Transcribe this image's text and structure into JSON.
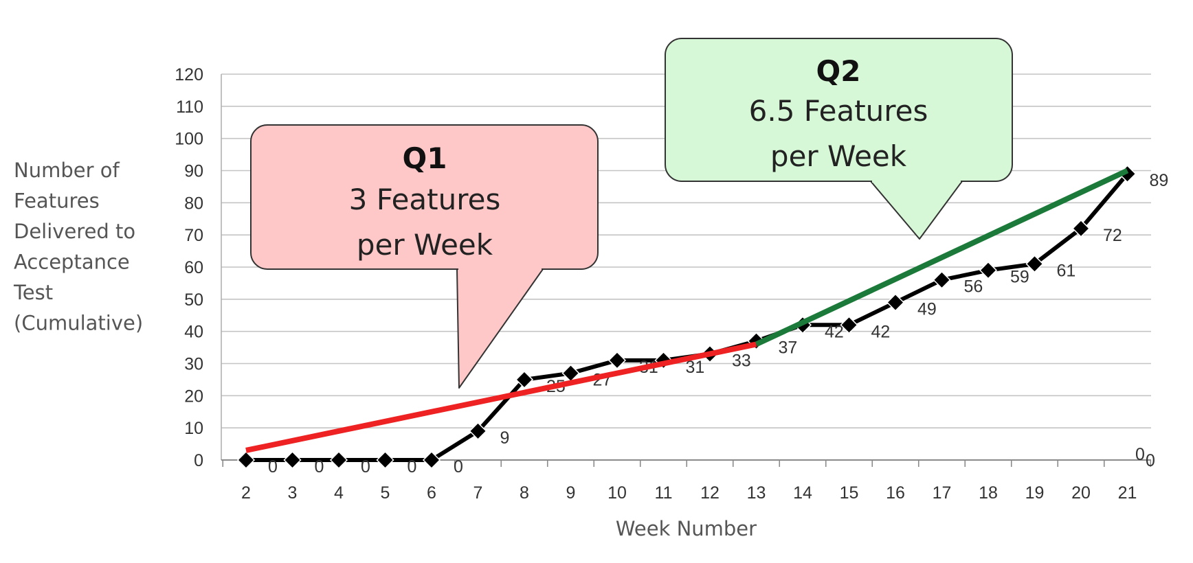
{
  "chart_data": {
    "type": "line",
    "title": "",
    "xlabel": "Week Number",
    "ylabel_lines": [
      "Number of",
      "Features",
      "Delivered to",
      "Acceptance",
      "Test",
      "(Cumulative)"
    ],
    "categories": [
      "2",
      "3",
      "4",
      "5",
      "6",
      "7",
      "8",
      "9",
      "10",
      "11",
      "12",
      "13",
      "14",
      "15",
      "16",
      "17",
      "18",
      "19",
      "20",
      "21"
    ],
    "ylim": [
      0,
      120
    ],
    "yticks": [
      0,
      10,
      20,
      30,
      40,
      50,
      60,
      70,
      80,
      90,
      100,
      110,
      120
    ],
    "grid": true,
    "series": [
      {
        "values": [
          0,
          0,
          0,
          0,
          0,
          9,
          25,
          27,
          31,
          31,
          33,
          37,
          42,
          42,
          49,
          56,
          59,
          61,
          72,
          89
        ],
        "labels": [
          "0",
          "0",
          "0",
          "0",
          "0",
          "9",
          "25",
          "27",
          "31",
          "31",
          "33",
          "37",
          "42",
          "42",
          "49",
          "56",
          "59",
          "61",
          "72",
          "89"
        ],
        "color": "#000000",
        "marker": "diamond"
      }
    ],
    "trend_lines": [
      {
        "x": [
          "2",
          "13"
        ],
        "y": [
          3,
          36
        ],
        "color": "#ee2222"
      },
      {
        "x": [
          "13",
          "21"
        ],
        "y": [
          36,
          90
        ],
        "color": "#1b7a3a"
      }
    ],
    "stray_labels": [
      "0",
      "0"
    ],
    "annotations": [
      {
        "title": "Q1",
        "lines": [
          "3 Features",
          "per Week"
        ],
        "fill": "#ffc8c8"
      },
      {
        "title": "Q2",
        "lines": [
          "6.5 Features",
          "per Week"
        ],
        "fill": "#d6f8d6"
      }
    ]
  }
}
